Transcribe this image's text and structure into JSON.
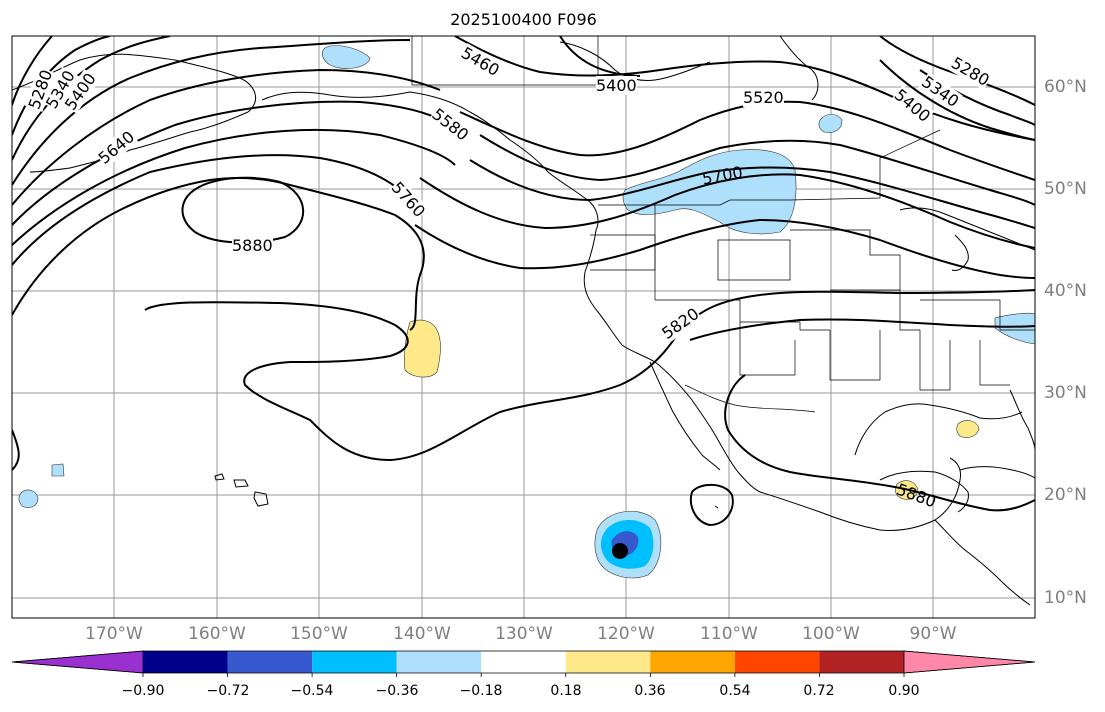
{
  "title": "2025100400 F096",
  "lat_labels": [
    "60°N",
    "50°N",
    "40°N",
    "30°N",
    "20°N",
    "10°N"
  ],
  "lon_labels": [
    "170°W",
    "160°W",
    "150°W",
    "140°W",
    "130°W",
    "120°W",
    "110°W",
    "100°W",
    "90°W"
  ],
  "contour_labels": [
    "5280",
    "5340",
    "5400",
    "5640",
    "5880",
    "5760",
    "5580",
    "5460",
    "5400",
    "5520",
    "5700",
    "5280",
    "5340",
    "5400",
    "5820",
    "5880"
  ],
  "colorbar": {
    "colors": [
      "#9b30d0",
      "#00008b",
      "#3659cf",
      "#00bfff",
      "#aee0fb",
      "#ffffff",
      "#fee98a",
      "#ffa500",
      "#ff4500",
      "#b22222",
      "#ff88aa"
    ],
    "tick_labels": [
      "−0.90",
      "−0.72",
      "−0.54",
      "−0.36",
      "−0.18",
      "0.18",
      "0.36",
      "0.54",
      "0.72",
      "0.90"
    ]
  }
}
